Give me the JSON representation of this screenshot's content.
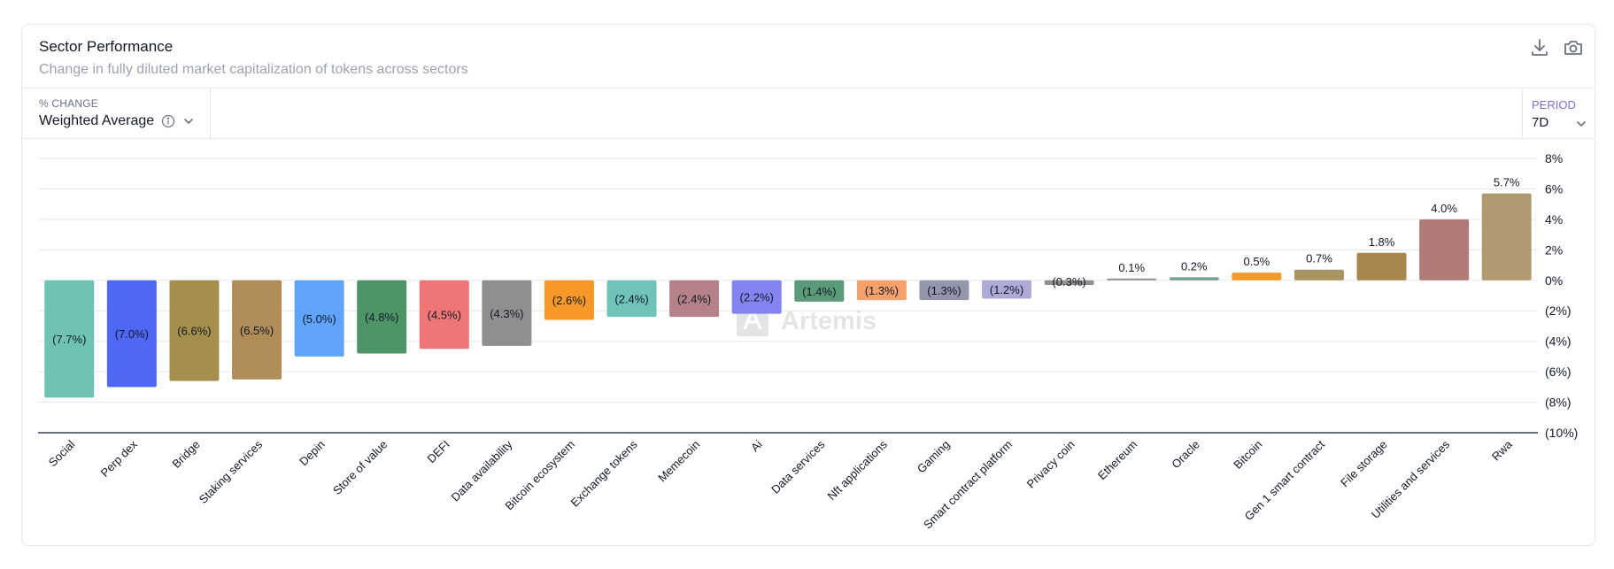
{
  "card": {
    "title": "Sector Performance",
    "subtitle": "Change in fully diluted market capitalization of tokens across sectors"
  },
  "toolbar": {
    "download_icon": "download-icon",
    "camera_icon": "camera-icon"
  },
  "metric": {
    "label": "% CHANGE",
    "value": "Weighted Average"
  },
  "period": {
    "label": "PERIOD",
    "value": "7D"
  },
  "watermark": "Artemis",
  "colors": {
    "axis": "#374151",
    "grid": "#e5e7eb",
    "text": "#111827",
    "period_accent": "#7c6fd6"
  },
  "chart_data": {
    "type": "bar",
    "title": "Sector Performance",
    "ylim": [
      -10,
      8
    ],
    "yticks": [
      8,
      6,
      4,
      2,
      0,
      -2,
      -4,
      -6,
      -8,
      -10
    ],
    "ytick_labels": [
      "8%",
      "6%",
      "4%",
      "2%",
      "0%",
      "(2%)",
      "(4%)",
      "(6%)",
      "(8%)",
      "(10%)"
    ],
    "categories": [
      "Social",
      "Perp dex",
      "Bridge",
      "Staking services",
      "Depin",
      "Store of value",
      "DEFI",
      "Data availability",
      "Bitcoin ecosystem",
      "Exchange tokens",
      "Memecoin",
      "Ai",
      "Data services",
      "Nft applications",
      "Gaming",
      "Smart contract platform",
      "Privacy coin",
      "Ethereum",
      "Oracle",
      "Bitcoin",
      "Gen 1 smart contract",
      "File storage",
      "Utilities and services",
      "Rwa"
    ],
    "values": [
      -7.7,
      -7.0,
      -6.6,
      -6.5,
      -5.0,
      -4.8,
      -4.5,
      -4.3,
      -2.6,
      -2.4,
      -2.4,
      -2.2,
      -1.4,
      -1.3,
      -1.3,
      -1.2,
      -0.3,
      0.1,
      0.2,
      0.5,
      0.7,
      1.8,
      4.0,
      5.7
    ],
    "value_labels": [
      "(7.7%)",
      "(7.0%)",
      "(6.6%)",
      "(6.5%)",
      "(5.0%)",
      "(4.8%)",
      "(4.5%)",
      "(4.3%)",
      "(2.6%)",
      "(2.4%)",
      "(2.4%)",
      "(2.2%)",
      "(1.4%)",
      "(1.3%)",
      "(1.3%)",
      "(1.2%)",
      "(0.3%)",
      "0.1%",
      "0.2%",
      "0.5%",
      "0.7%",
      "1.8%",
      "4.0%",
      "5.7%"
    ],
    "bar_colors": [
      "#6fc3b2",
      "#4f67f5",
      "#a48f4d",
      "#b08d58",
      "#5fa4fa",
      "#4d9466",
      "#ef7676",
      "#8f8f8f",
      "#f79828",
      "#6fc3b8",
      "#b58289",
      "#8483f2",
      "#5b9a78",
      "#f6a06c",
      "#9497a9",
      "#aeaad8",
      "#8f8f8f",
      "#8e8e8e",
      "#739e94",
      "#f39a2b",
      "#a89460",
      "#a8874d",
      "#b07b76",
      "#b09a72"
    ]
  }
}
